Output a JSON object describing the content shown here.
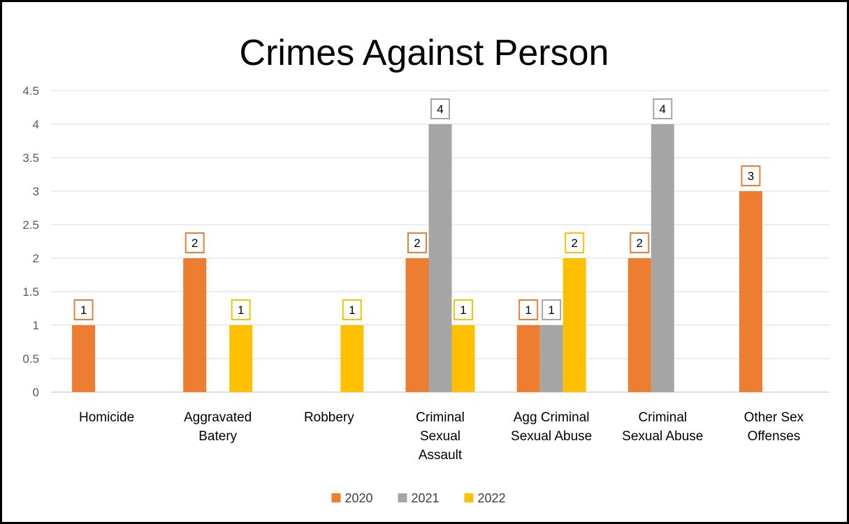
{
  "chart_data": {
    "type": "bar",
    "title": "Crimes Against Person",
    "categories": [
      [
        "Homicide"
      ],
      [
        "Aggravated",
        "Batery"
      ],
      [
        "Robbery"
      ],
      [
        "Criminal",
        "Sexual",
        "Assault"
      ],
      [
        "Agg Criminal",
        "Sexual Abuse"
      ],
      [
        "Criminal",
        "Sexual Abuse"
      ],
      [
        "Other Sex",
        "Offenses"
      ]
    ],
    "series": [
      {
        "name": "2020",
        "color": "#ED7D31",
        "values": [
          1,
          2,
          null,
          2,
          1,
          2,
          3
        ]
      },
      {
        "name": "2021",
        "color": "#A5A5A5",
        "values": [
          null,
          null,
          null,
          4,
          1,
          4,
          null
        ]
      },
      {
        "name": "2022",
        "color": "#FFC000",
        "values": [
          null,
          1,
          1,
          1,
          2,
          null,
          null
        ]
      }
    ],
    "ylim": [
      0,
      4.5
    ],
    "yticks": [
      "0",
      "0.5",
      "1",
      "1.5",
      "2",
      "2.5",
      "3",
      "3.5",
      "4",
      "4.5"
    ],
    "grid": true,
    "legend_position": "bottom"
  }
}
